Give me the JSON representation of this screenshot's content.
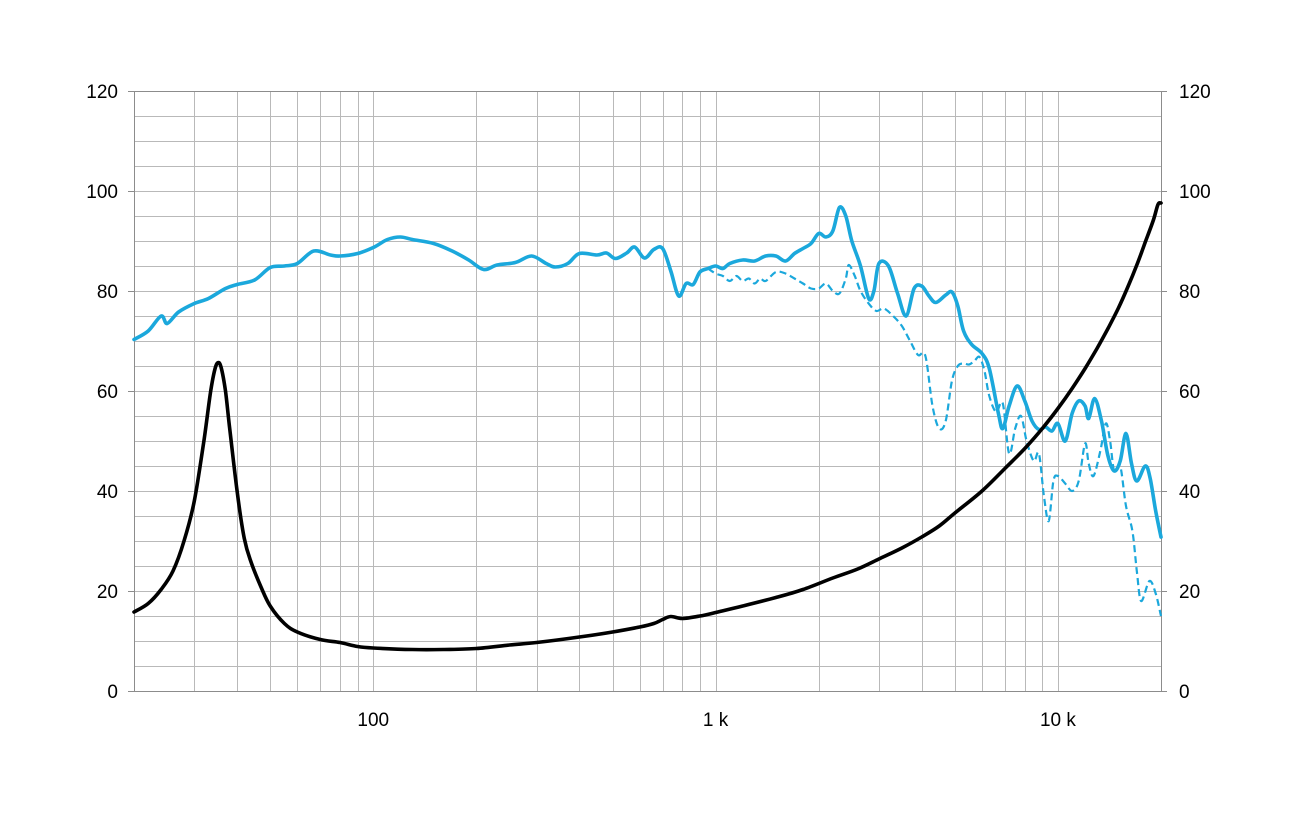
{
  "chart_data": {
    "type": "line",
    "title": "",
    "xscale": "log",
    "xlim": [
      20,
      20000
    ],
    "ylim": [
      0,
      120
    ],
    "y2lim": [
      0,
      120
    ],
    "grid": true,
    "x_tick_labels": [
      {
        "value": 100,
        "label": "100"
      },
      {
        "value": 1000,
        "label": "1 k"
      },
      {
        "value": 10000,
        "label": "10 k"
      }
    ],
    "y_tick_labels": [
      "0",
      "20",
      "40",
      "60",
      "80",
      "100",
      "120"
    ],
    "y2_tick_labels": [
      "0",
      "20",
      "40",
      "60",
      "80",
      "100",
      "120"
    ],
    "colors": {
      "spl": "#1BA8DC",
      "impedance": "#000000",
      "grid": "#b9b9b9",
      "frame": "#8c8c8c"
    },
    "series": [
      {
        "key": "spl_on_axis",
        "style": "solid",
        "color": "#1BA8DC",
        "points": [
          [
            20,
            70.3
          ],
          [
            22,
            72
          ],
          [
            24,
            75
          ],
          [
            25,
            73.5
          ],
          [
            27,
            75.8
          ],
          [
            30,
            77.5
          ],
          [
            33,
            78.5
          ],
          [
            37,
            80.5
          ],
          [
            40,
            81.3
          ],
          [
            45,
            82.2
          ],
          [
            50,
            84.7
          ],
          [
            55,
            85
          ],
          [
            60,
            85.5
          ],
          [
            67,
            88
          ],
          [
            75,
            87.2
          ],
          [
            80,
            87
          ],
          [
            90,
            87.5
          ],
          [
            100,
            88.7
          ],
          [
            110,
            90.3
          ],
          [
            120,
            90.8
          ],
          [
            130,
            90.3
          ],
          [
            150,
            89.5
          ],
          [
            170,
            88
          ],
          [
            190,
            86.2
          ],
          [
            210,
            84.3
          ],
          [
            230,
            85.2
          ],
          [
            260,
            85.7
          ],
          [
            290,
            87
          ],
          [
            320,
            85.5
          ],
          [
            340,
            84.8
          ],
          [
            370,
            85.5
          ],
          [
            400,
            87.5
          ],
          [
            450,
            87.2
          ],
          [
            480,
            87.6
          ],
          [
            510,
            86.5
          ],
          [
            550,
            87.6
          ],
          [
            580,
            88.8
          ],
          [
            620,
            86.6
          ],
          [
            660,
            88.3
          ],
          [
            700,
            88.5
          ],
          [
            740,
            84
          ],
          [
            780,
            79
          ],
          [
            820,
            81.5
          ],
          [
            860,
            81.3
          ],
          [
            900,
            83.8
          ],
          [
            950,
            84.5
          ],
          [
            1000,
            85
          ],
          [
            1050,
            84.5
          ],
          [
            1100,
            85.5
          ],
          [
            1200,
            86.2
          ],
          [
            1300,
            86
          ],
          [
            1400,
            87
          ],
          [
            1500,
            87
          ],
          [
            1600,
            86
          ],
          [
            1700,
            87.5
          ],
          [
            1800,
            88.5
          ],
          [
            1900,
            89.5
          ],
          [
            2000,
            91.5
          ],
          [
            2100,
            90.8
          ],
          [
            2200,
            92
          ],
          [
            2300,
            96.7
          ],
          [
            2400,
            95
          ],
          [
            2500,
            90
          ],
          [
            2650,
            85
          ],
          [
            2800,
            78.5
          ],
          [
            2900,
            80
          ],
          [
            3000,
            85.5
          ],
          [
            3200,
            85
          ],
          [
            3400,
            79.5
          ],
          [
            3600,
            75
          ],
          [
            3800,
            80.5
          ],
          [
            4000,
            81
          ],
          [
            4200,
            79
          ],
          [
            4400,
            77.7
          ],
          [
            4700,
            79.2
          ],
          [
            4900,
            79.8
          ],
          [
            5100,
            77
          ],
          [
            5300,
            72
          ],
          [
            5600,
            69.3
          ],
          [
            6000,
            67.5
          ],
          [
            6300,
            64.5
          ],
          [
            6700,
            55.5
          ],
          [
            6900,
            52.5
          ],
          [
            7200,
            57
          ],
          [
            7600,
            61
          ],
          [
            8000,
            58
          ],
          [
            8400,
            54
          ],
          [
            8800,
            52.3
          ],
          [
            9200,
            52.8
          ],
          [
            9600,
            52
          ],
          [
            10000,
            53.5
          ],
          [
            10500,
            50
          ],
          [
            11000,
            55.5
          ],
          [
            11500,
            58
          ],
          [
            12000,
            57
          ],
          [
            12300,
            54.5
          ],
          [
            12800,
            58.5
          ],
          [
            13400,
            54
          ],
          [
            14000,
            47
          ],
          [
            14600,
            44
          ],
          [
            15200,
            46
          ],
          [
            15800,
            51.5
          ],
          [
            16400,
            45.5
          ],
          [
            17000,
            42
          ],
          [
            18000,
            45
          ],
          [
            18600,
            42.5
          ],
          [
            19300,
            36
          ],
          [
            20000,
            30.8
          ]
        ]
      },
      {
        "key": "spl_off_axis",
        "style": "dashed",
        "color": "#1BA8DC",
        "points": [
          [
            950,
            84.5
          ],
          [
            1000,
            83.5
          ],
          [
            1050,
            83
          ],
          [
            1100,
            82
          ],
          [
            1150,
            83
          ],
          [
            1200,
            82
          ],
          [
            1250,
            82.5
          ],
          [
            1300,
            81.5
          ],
          [
            1350,
            82.5
          ],
          [
            1400,
            82
          ],
          [
            1500,
            83.8
          ],
          [
            1600,
            83.5
          ],
          [
            1700,
            82.5
          ],
          [
            1800,
            81.5
          ],
          [
            1900,
            80.5
          ],
          [
            2000,
            80.5
          ],
          [
            2100,
            81.5
          ],
          [
            2200,
            80
          ],
          [
            2300,
            79.5
          ],
          [
            2400,
            82.5
          ],
          [
            2450,
            85.2
          ],
          [
            2550,
            83
          ],
          [
            2650,
            80
          ],
          [
            2800,
            77.5
          ],
          [
            2950,
            76
          ],
          [
            3100,
            76.5
          ],
          [
            3300,
            75
          ],
          [
            3500,
            73
          ],
          [
            3700,
            70
          ],
          [
            3900,
            67.2
          ],
          [
            4100,
            67
          ],
          [
            4300,
            57
          ],
          [
            4500,
            52.5
          ],
          [
            4700,
            54
          ],
          [
            4900,
            62
          ],
          [
            5100,
            65
          ],
          [
            5300,
            65.5
          ],
          [
            5500,
            65.3
          ],
          [
            5700,
            66
          ],
          [
            5900,
            66.8
          ],
          [
            6100,
            64
          ],
          [
            6300,
            59
          ],
          [
            6600,
            55.8
          ],
          [
            6900,
            57.5
          ],
          [
            7200,
            47.5
          ],
          [
            7500,
            52.5
          ],
          [
            7800,
            55
          ],
          [
            8100,
            50
          ],
          [
            8500,
            46
          ],
          [
            8800,
            47.5
          ],
          [
            9100,
            39
          ],
          [
            9400,
            34
          ],
          [
            9700,
            42
          ],
          [
            10000,
            43
          ],
          [
            10500,
            41.5
          ],
          [
            11000,
            40
          ],
          [
            11500,
            42
          ],
          [
            12000,
            49.5
          ],
          [
            12300,
            45.5
          ],
          [
            12700,
            43
          ],
          [
            13300,
            48
          ],
          [
            13800,
            53.5
          ],
          [
            14200,
            50
          ],
          [
            14600,
            44
          ],
          [
            15200,
            45
          ],
          [
            15800,
            37
          ],
          [
            16500,
            32
          ],
          [
            17000,
            24
          ],
          [
            17500,
            18
          ],
          [
            18500,
            22
          ],
          [
            19300,
            19.5
          ],
          [
            20000,
            15
          ]
        ]
      },
      {
        "key": "impedance",
        "style": "solid",
        "color": "#000000",
        "points": [
          [
            20,
            15.8
          ],
          [
            22,
            17.5
          ],
          [
            24,
            20.3
          ],
          [
            26,
            24
          ],
          [
            28,
            30
          ],
          [
            30,
            38
          ],
          [
            32,
            50
          ],
          [
            33.5,
            60
          ],
          [
            34.5,
            64.5
          ],
          [
            35.3,
            65.7
          ],
          [
            36,
            64.5
          ],
          [
            37,
            60
          ],
          [
            38,
            53
          ],
          [
            40,
            40
          ],
          [
            42,
            30.5
          ],
          [
            44,
            25.7
          ],
          [
            47,
            20.8
          ],
          [
            50,
            17
          ],
          [
            55,
            13.5
          ],
          [
            60,
            11.8
          ],
          [
            70,
            10.3
          ],
          [
            80,
            9.7
          ],
          [
            90,
            8.9
          ],
          [
            100,
            8.6
          ],
          [
            130,
            8.3
          ],
          [
            160,
            8.3
          ],
          [
            200,
            8.5
          ],
          [
            250,
            9.2
          ],
          [
            300,
            9.7
          ],
          [
            400,
            10.8
          ],
          [
            500,
            11.8
          ],
          [
            600,
            12.8
          ],
          [
            660,
            13.5
          ],
          [
            700,
            14.3
          ],
          [
            740,
            14.9
          ],
          [
            800,
            14.5
          ],
          [
            900,
            15
          ],
          [
            1000,
            15.7
          ],
          [
            1200,
            17
          ],
          [
            1500,
            18.7
          ],
          [
            1800,
            20.3
          ],
          [
            2200,
            22.6
          ],
          [
            2600,
            24.4
          ],
          [
            3000,
            26.4
          ],
          [
            3500,
            28.6
          ],
          [
            4000,
            30.8
          ],
          [
            4500,
            33
          ],
          [
            5000,
            35.6
          ],
          [
            6000,
            40
          ],
          [
            7000,
            44.5
          ],
          [
            8000,
            48.5
          ],
          [
            9000,
            52.5
          ],
          [
            10000,
            56.5
          ],
          [
            11000,
            60.5
          ],
          [
            12000,
            64.5
          ],
          [
            13000,
            68.5
          ],
          [
            14000,
            72.5
          ],
          [
            15000,
            76.5
          ],
          [
            16000,
            80.8
          ],
          [
            17000,
            85.2
          ],
          [
            18000,
            89.8
          ],
          [
            19000,
            94.2
          ],
          [
            19600,
            97.3
          ],
          [
            20000,
            97.6
          ]
        ]
      }
    ]
  }
}
